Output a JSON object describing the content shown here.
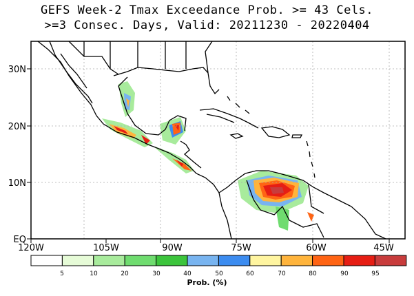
{
  "title_line1": "GEFS Week-2 Tmax Exceedance Prob. >= 43 Cels.",
  "title_line2": ">=3 Consec. Days, Valid: 20211230 - 20220404",
  "lon_labels": [
    "120W",
    "105W",
    "90W",
    "75W",
    "60W",
    "45W"
  ],
  "lat_labels": [
    "30N",
    "20N",
    "10N",
    "EQ"
  ],
  "colorbar": {
    "title": "Prob. (%)",
    "tick_labels": [
      "5",
      "10",
      "20",
      "30",
      "40",
      "50",
      "60",
      "70",
      "80",
      "90",
      "95"
    ],
    "colors": [
      "#ffffff",
      "#e6fbd7",
      "#a8eb9c",
      "#6fdc6f",
      "#3cc43c",
      "#78b4f0",
      "#3c8cf0",
      "#fff5a0",
      "#ffb43c",
      "#ff6414",
      "#e61e14",
      "#c83c3c"
    ]
  },
  "colors": {
    "coast": "#000000",
    "grid": "#aaaaaa"
  }
}
